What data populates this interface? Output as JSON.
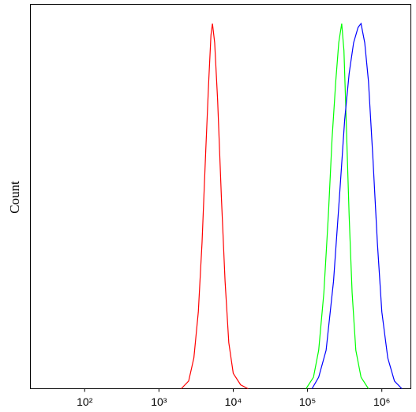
{
  "chart_data": {
    "type": "line",
    "y_label": "Count",
    "xscale": "log",
    "xlim": [
      18.6,
      2460000
    ],
    "ylim": [
      0,
      100
    ],
    "xticks": [
      {
        "value": 100,
        "label": "10²"
      },
      {
        "value": 1000,
        "label": "10³"
      },
      {
        "value": 10000,
        "label": "10⁴"
      },
      {
        "value": 100000,
        "label": "10⁵"
      },
      {
        "value": 1000000,
        "label": "10⁶"
      }
    ],
    "series": [
      {
        "color": "#ff0000",
        "x": [
          1995,
          2512,
          2951,
          3388,
          3802,
          4266,
          4677,
          5012,
          5248,
          5623,
          6166,
          6918,
          7762,
          8710,
          10000,
          12589,
          15849
        ],
        "values": [
          0,
          2,
          8,
          20,
          38,
          62,
          80,
          92,
          95,
          90,
          75,
          50,
          28,
          12,
          4,
          1,
          0
        ]
      },
      {
        "color": "#00ff00",
        "x": [
          95499,
          120226,
          141254,
          165959,
          190546,
          213796,
          239883,
          263027,
          288403,
          309030,
          331131,
          363078,
          398107,
          446684,
          524807,
          660693
        ],
        "values": [
          0,
          3,
          10,
          25,
          45,
          65,
          80,
          90,
          95,
          88,
          70,
          45,
          25,
          10,
          3,
          0
        ]
      },
      {
        "color": "#0000ff",
        "x": [
          114815,
          141254,
          177828,
          223872,
          269153,
          316228,
          363078,
          416869,
          478630,
          524807,
          588844,
          660693,
          758578,
          870964,
          1000000,
          1202264,
          1479108,
          1862087
        ],
        "values": [
          0,
          3,
          10,
          28,
          50,
          70,
          82,
          90,
          94,
          95,
          90,
          80,
          60,
          38,
          20,
          8,
          2,
          0
        ]
      }
    ]
  }
}
